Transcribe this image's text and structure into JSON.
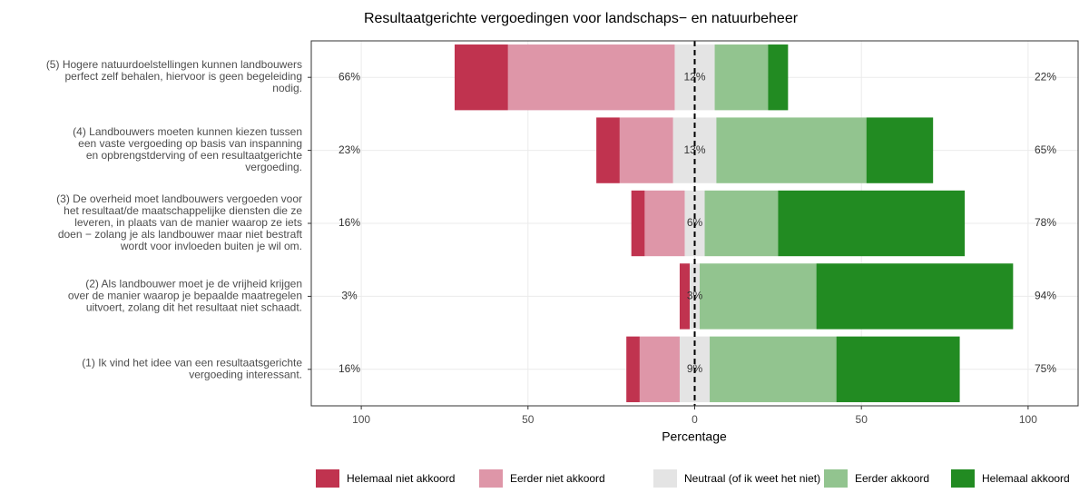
{
  "chart_data": {
    "type": "diverging_bar",
    "title": "Resultaatgerichte vergoedingen voor landschaps− en natuurbeheer",
    "xlabel": "Percentage",
    "categories": [
      [
        "(5) Hogere natuurdoelstellingen kunnen landbouwers",
        "perfect zelf behalen, hiervoor is geen begeleiding",
        "nodig."
      ],
      [
        "(4) Landbouwers moeten kunnen kiezen tussen",
        "een vaste vergoeding op basis van inspanning",
        "en opbrengstderving of een resultaatgerichte",
        "vergoeding."
      ],
      [
        "(3) De overheid moet landbouwers vergoeden voor",
        "het resultaat/de maatschappelijke diensten die ze",
        "leveren, in plaats van de manier waarop ze iets",
        "doen − zolang je als landbouwer maar niet bestraft",
        "wordt voor invloeden buiten je wil om."
      ],
      [
        "(2) Als landbouwer moet je de vrijheid krijgen",
        "over de manier waarop je bepaalde maatregelen",
        "uitvoert, zolang dit het resultaat niet schaadt."
      ],
      [
        "(1) Ik vind het idee van een resultaatsgerichte",
        "vergoeding interessant."
      ]
    ],
    "series": [
      {
        "name": "Helemaal niet akkoord",
        "color": "#c0334f",
        "side": "negative",
        "values": [
          16,
          7,
          4,
          3,
          4
        ]
      },
      {
        "name": "Eerder niet akkoord",
        "color": "#de96a8",
        "side": "negative",
        "values": [
          50,
          16,
          12,
          0,
          12
        ]
      },
      {
        "name": "Neutraal (of ik weet het niet)",
        "color": "#e4e4e4",
        "side": "neutral",
        "values": [
          12,
          13,
          6,
          3,
          9
        ],
        "value_labels": [
          "12%",
          "13%",
          "6%",
          "3%",
          "9%"
        ]
      },
      {
        "name": "Eerder akkoord",
        "color": "#92c48f",
        "side": "positive",
        "values": [
          16,
          45,
          22,
          35,
          38
        ]
      },
      {
        "name": "Helemaal akkoord",
        "color": "#228b22",
        "side": "positive",
        "values": [
          6,
          20,
          56,
          59,
          37
        ]
      }
    ],
    "negative_labels": [
      "66%",
      "23%",
      "16%",
      "3%",
      "16%"
    ],
    "positive_labels": [
      "22%",
      "65%",
      "78%",
      "94%",
      "75%"
    ],
    "xlim": [
      -115,
      115
    ],
    "xticks": [
      {
        "value": -100,
        "label": "100"
      },
      {
        "value": -50,
        "label": "50"
      },
      0,
      50,
      100
    ],
    "grid": true,
    "legend": "bottom"
  }
}
